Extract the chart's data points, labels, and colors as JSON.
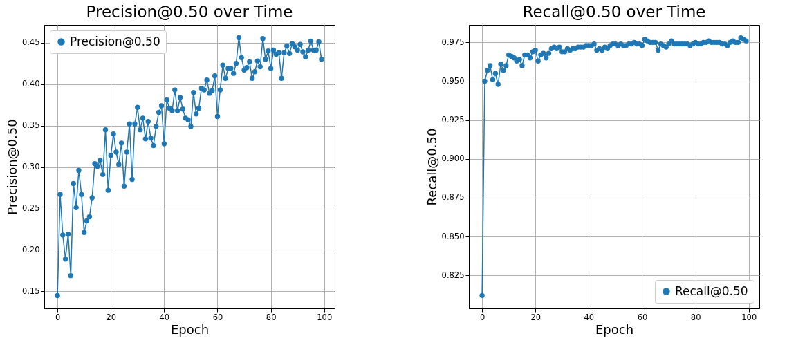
{
  "chart_data": [
    {
      "type": "line",
      "title": "Precision@0.50 over Time",
      "xlabel": "Epoch",
      "ylabel": "Precision@0.50",
      "grid": true,
      "legend": "top left",
      "marker": "circle",
      "line_style": "solid",
      "xlim": [
        -4.95,
        103.95
      ],
      "ylim": [
        0.1295,
        0.4715
      ],
      "xticks": [
        0,
        20,
        40,
        60,
        80,
        100
      ],
      "yticks": [
        0.15,
        {
          "value": 0.2,
          "label": "0.20"
        },
        0.25,
        {
          "value": 0.3,
          "label": "0.30"
        },
        0.35,
        {
          "value": 0.4,
          "label": "0.40"
        },
        0.45
      ],
      "x": [
        0,
        1,
        2,
        3,
        4,
        5,
        6,
        7,
        8,
        9,
        10,
        11,
        12,
        13,
        14,
        15,
        16,
        17,
        18,
        19,
        20,
        21,
        22,
        23,
        24,
        25,
        26,
        27,
        28,
        29,
        30,
        31,
        32,
        33,
        34,
        35,
        36,
        37,
        38,
        39,
        40,
        41,
        42,
        43,
        44,
        45,
        46,
        47,
        48,
        49,
        50,
        51,
        52,
        53,
        54,
        55,
        56,
        57,
        58,
        59,
        60,
        61,
        62,
        63,
        64,
        65,
        66,
        67,
        68,
        69,
        70,
        71,
        72,
        73,
        74,
        75,
        76,
        77,
        78,
        79,
        80,
        81,
        82,
        83,
        84,
        85,
        86,
        87,
        88,
        89,
        90,
        91,
        92,
        93,
        94,
        95,
        96,
        97,
        98,
        99
      ],
      "series": [
        {
          "name": "Precision@0.50",
          "color": "#1f77b4",
          "values": [
            0.145,
            0.267,
            0.218,
            0.189,
            0.219,
            0.169,
            0.28,
            0.251,
            0.296,
            0.267,
            0.221,
            0.235,
            0.24,
            0.263,
            0.304,
            0.301,
            0.308,
            0.291,
            0.345,
            0.272,
            0.314,
            0.34,
            0.318,
            0.303,
            0.329,
            0.277,
            0.318,
            0.352,
            0.285,
            0.352,
            0.372,
            0.345,
            0.359,
            0.334,
            0.355,
            0.335,
            0.326,
            0.349,
            0.366,
            0.374,
            0.328,
            0.381,
            0.371,
            0.368,
            0.393,
            0.368,
            0.384,
            0.37,
            0.359,
            0.357,
            0.349,
            0.39,
            0.364,
            0.371,
            0.395,
            0.393,
            0.405,
            0.389,
            0.392,
            0.41,
            0.361,
            0.393,
            0.423,
            0.407,
            0.419,
            0.419,
            0.413,
            0.425,
            0.456,
            0.432,
            0.417,
            0.42,
            0.427,
            0.407,
            0.415,
            0.428,
            0.421,
            0.455,
            0.43,
            0.44,
            0.419,
            0.441,
            0.436,
            0.438,
            0.407,
            0.438,
            0.446,
            0.437,
            0.449,
            0.445,
            0.441,
            0.448,
            0.439,
            0.433,
            0.441,
            0.452,
            0.441,
            0.441,
            0.451,
            0.43
          ]
        }
      ]
    },
    {
      "type": "line",
      "title": "Recall@0.50 over Time",
      "xlabel": "Epoch",
      "ylabel": "Recall@0.50",
      "grid": true,
      "legend": "bottom right",
      "marker": "circle",
      "line_style": "solid",
      "xlim": [
        -4.95,
        103.95
      ],
      "ylim": [
        0.8037,
        0.9863
      ],
      "xticks": [
        0,
        20,
        40,
        60,
        80,
        100
      ],
      "yticks": [
        0.825,
        {
          "value": 0.85,
          "label": "0.850"
        },
        0.875,
        {
          "value": 0.9,
          "label": "0.900"
        },
        0.925,
        {
          "value": 0.95,
          "label": "0.950"
        },
        0.975
      ],
      "x": [
        0,
        1,
        2,
        3,
        4,
        5,
        6,
        7,
        8,
        9,
        10,
        11,
        12,
        13,
        14,
        15,
        16,
        17,
        18,
        19,
        20,
        21,
        22,
        23,
        24,
        25,
        26,
        27,
        28,
        29,
        30,
        31,
        32,
        33,
        34,
        35,
        36,
        37,
        38,
        39,
        40,
        41,
        42,
        43,
        44,
        45,
        46,
        47,
        48,
        49,
        50,
        51,
        52,
        53,
        54,
        55,
        56,
        57,
        58,
        59,
        60,
        61,
        62,
        63,
        64,
        65,
        66,
        67,
        68,
        69,
        70,
        71,
        72,
        73,
        74,
        75,
        76,
        77,
        78,
        79,
        80,
        81,
        82,
        83,
        84,
        85,
        86,
        87,
        88,
        89,
        90,
        91,
        92,
        93,
        94,
        95,
        96,
        97,
        98,
        99
      ],
      "series": [
        {
          "name": "Recall@0.50",
          "color": "#1f77b4",
          "values": [
            0.812,
            0.95,
            0.957,
            0.96,
            0.951,
            0.955,
            0.948,
            0.961,
            0.957,
            0.96,
            0.967,
            0.966,
            0.965,
            0.963,
            0.964,
            0.96,
            0.967,
            0.967,
            0.965,
            0.969,
            0.97,
            0.963,
            0.967,
            0.968,
            0.965,
            0.968,
            0.971,
            0.972,
            0.971,
            0.972,
            0.969,
            0.969,
            0.971,
            0.97,
            0.971,
            0.971,
            0.972,
            0.972,
            0.972,
            0.973,
            0.973,
            0.973,
            0.974,
            0.97,
            0.971,
            0.97,
            0.972,
            0.971,
            0.973,
            0.974,
            0.974,
            0.973,
            0.974,
            0.973,
            0.973,
            0.974,
            0.974,
            0.975,
            0.974,
            0.974,
            0.973,
            0.977,
            0.976,
            0.975,
            0.975,
            0.975,
            0.97,
            0.974,
            0.973,
            0.972,
            0.974,
            0.976,
            0.974,
            0.974,
            0.974,
            0.974,
            0.974,
            0.974,
            0.973,
            0.974,
            0.975,
            0.974,
            0.974,
            0.975,
            0.975,
            0.976,
            0.975,
            0.975,
            0.975,
            0.975,
            0.974,
            0.974,
            0.973,
            0.975,
            0.976,
            0.975,
            0.975,
            0.978,
            0.977,
            0.976
          ]
        }
      ]
    }
  ]
}
